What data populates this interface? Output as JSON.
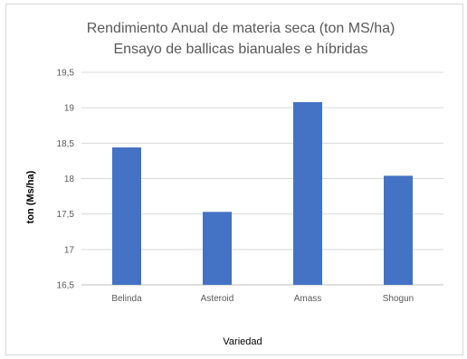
{
  "chart_data": {
    "type": "bar",
    "title": [
      "Rendimiento Anual de materia seca (ton MS/ha)",
      "Ensayo de ballicas bianuales e híbridas"
    ],
    "xlabel": "Variedad",
    "ylabel": "ton (Ms/ha)",
    "categories": [
      "Belinda",
      "Asteroid",
      "Amass",
      "Shogun"
    ],
    "values": [
      18.44,
      17.53,
      19.08,
      18.04
    ],
    "ylim": [
      16.5,
      19.5
    ],
    "yticks": [
      "16,5",
      "17",
      "17,5",
      "18",
      "18,5",
      "19",
      "19,5"
    ],
    "bar_color": "#4472c4",
    "grid": "horizontal"
  }
}
